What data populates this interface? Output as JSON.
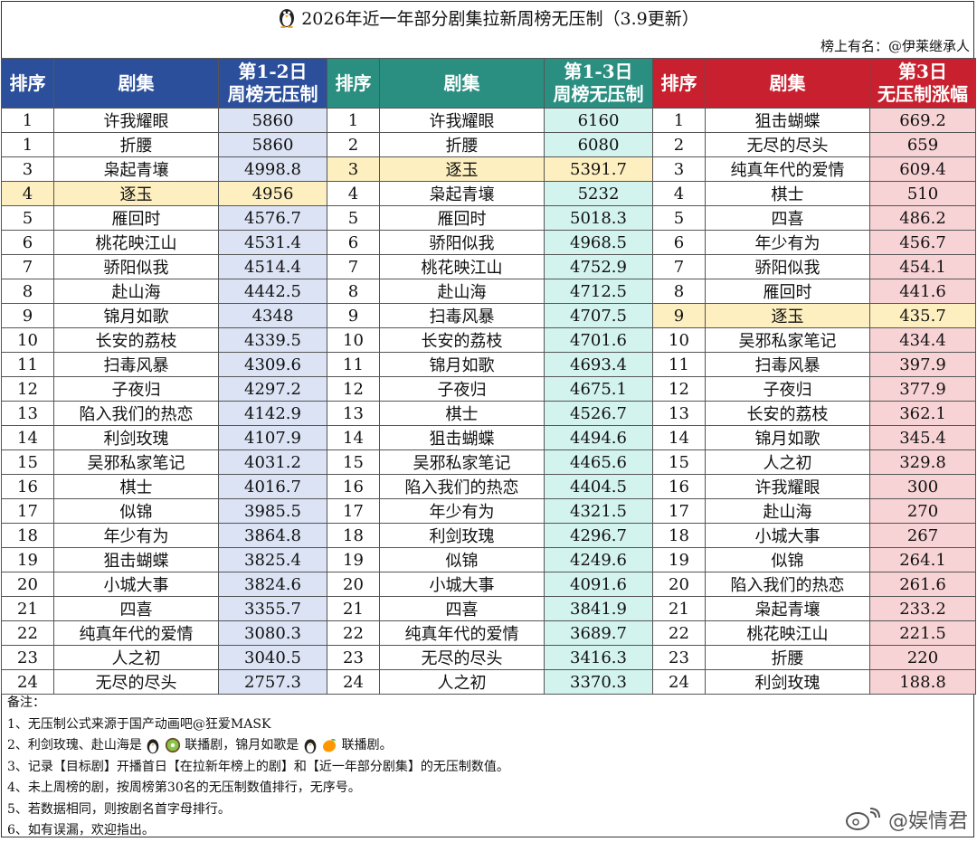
{
  "title": "2026年近一年部分剧集拉新周榜无压制（3.9更新）",
  "credit": "榜上有名：@伊莱继承人",
  "colors": {
    "blue_header": "#2c4f9c",
    "teal_header": "#2a8f80",
    "red_header": "#c8202e",
    "blue_cell": "#dbe3f4",
    "teal_cell": "#d3f3ef",
    "red_cell": "#f8d3d5",
    "highlight": "#fdefbf"
  },
  "sections": [
    {
      "headers": [
        "排序",
        "剧集",
        "第1-2日\n周榜无压制"
      ],
      "theme": "blue",
      "highlight_title": "逐玉",
      "rows": [
        {
          "rank": "1",
          "title": "许我耀眼",
          "value": "5860"
        },
        {
          "rank": "1",
          "title": "折腰",
          "value": "5860"
        },
        {
          "rank": "3",
          "title": "枭起青壤",
          "value": "4998.8"
        },
        {
          "rank": "4",
          "title": "逐玉",
          "value": "4956"
        },
        {
          "rank": "5",
          "title": "雁回时",
          "value": "4576.7"
        },
        {
          "rank": "6",
          "title": "桃花映江山",
          "value": "4531.4"
        },
        {
          "rank": "7",
          "title": "骄阳似我",
          "value": "4514.4"
        },
        {
          "rank": "8",
          "title": "赴山海",
          "value": "4442.5"
        },
        {
          "rank": "9",
          "title": "锦月如歌",
          "value": "4348"
        },
        {
          "rank": "10",
          "title": "长安的荔枝",
          "value": "4339.5"
        },
        {
          "rank": "11",
          "title": "扫毒风暴",
          "value": "4309.6"
        },
        {
          "rank": "12",
          "title": "子夜归",
          "value": "4297.2"
        },
        {
          "rank": "13",
          "title": "陷入我们的热恋",
          "value": "4142.9"
        },
        {
          "rank": "14",
          "title": "利剑玫瑰",
          "value": "4107.9"
        },
        {
          "rank": "15",
          "title": "吴邪私家笔记",
          "value": "4031.2"
        },
        {
          "rank": "16",
          "title": "棋士",
          "value": "4016.7"
        },
        {
          "rank": "17",
          "title": "似锦",
          "value": "3985.5"
        },
        {
          "rank": "18",
          "title": "年少有为",
          "value": "3864.8"
        },
        {
          "rank": "19",
          "title": "狙击蝴蝶",
          "value": "3825.4"
        },
        {
          "rank": "20",
          "title": "小城大事",
          "value": "3824.6"
        },
        {
          "rank": "21",
          "title": "四喜",
          "value": "3355.7"
        },
        {
          "rank": "22",
          "title": "纯真年代的爱情",
          "value": "3080.3"
        },
        {
          "rank": "23",
          "title": "人之初",
          "value": "3040.5"
        },
        {
          "rank": "24",
          "title": "无尽的尽头",
          "value": "2757.3"
        }
      ]
    },
    {
      "headers": [
        "排序",
        "剧集",
        "第1-3日\n周榜无压制"
      ],
      "theme": "teal",
      "highlight_title": "逐玉",
      "rows": [
        {
          "rank": "1",
          "title": "许我耀眼",
          "value": "6160"
        },
        {
          "rank": "2",
          "title": "折腰",
          "value": "6080"
        },
        {
          "rank": "3",
          "title": "逐玉",
          "value": "5391.7"
        },
        {
          "rank": "4",
          "title": "枭起青壤",
          "value": "5232"
        },
        {
          "rank": "5",
          "title": "雁回时",
          "value": "5018.3"
        },
        {
          "rank": "6",
          "title": "骄阳似我",
          "value": "4968.5"
        },
        {
          "rank": "7",
          "title": "桃花映江山",
          "value": "4752.9"
        },
        {
          "rank": "8",
          "title": "赴山海",
          "value": "4712.5"
        },
        {
          "rank": "9",
          "title": "扫毒风暴",
          "value": "4707.5"
        },
        {
          "rank": "10",
          "title": "长安的荔枝",
          "value": "4701.6"
        },
        {
          "rank": "11",
          "title": "锦月如歌",
          "value": "4693.4"
        },
        {
          "rank": "12",
          "title": "子夜归",
          "value": "4675.1"
        },
        {
          "rank": "13",
          "title": "棋士",
          "value": "4526.7"
        },
        {
          "rank": "14",
          "title": "狙击蝴蝶",
          "value": "4494.6"
        },
        {
          "rank": "15",
          "title": "吴邪私家笔记",
          "value": "4465.6"
        },
        {
          "rank": "16",
          "title": "陷入我们的热恋",
          "value": "4404.5"
        },
        {
          "rank": "17",
          "title": "年少有为",
          "value": "4321.5"
        },
        {
          "rank": "18",
          "title": "利剑玫瑰",
          "value": "4296.7"
        },
        {
          "rank": "19",
          "title": "似锦",
          "value": "4249.6"
        },
        {
          "rank": "20",
          "title": "小城大事",
          "value": "4091.6"
        },
        {
          "rank": "21",
          "title": "四喜",
          "value": "3841.9"
        },
        {
          "rank": "22",
          "title": "纯真年代的爱情",
          "value": "3689.7"
        },
        {
          "rank": "23",
          "title": "无尽的尽头",
          "value": "3416.3"
        },
        {
          "rank": "24",
          "title": "人之初",
          "value": "3370.3"
        }
      ]
    },
    {
      "headers": [
        "排序",
        "剧集",
        "第3日\n无压制涨幅"
      ],
      "theme": "red",
      "highlight_title": "逐玉",
      "rows": [
        {
          "rank": "1",
          "title": "狙击蝴蝶",
          "value": "669.2"
        },
        {
          "rank": "2",
          "title": "无尽的尽头",
          "value": "659"
        },
        {
          "rank": "3",
          "title": "纯真年代的爱情",
          "value": "609.4"
        },
        {
          "rank": "4",
          "title": "棋士",
          "value": "510"
        },
        {
          "rank": "5",
          "title": "四喜",
          "value": "486.2"
        },
        {
          "rank": "6",
          "title": "年少有为",
          "value": "456.7"
        },
        {
          "rank": "7",
          "title": "骄阳似我",
          "value": "454.1"
        },
        {
          "rank": "8",
          "title": "雁回时",
          "value": "441.6"
        },
        {
          "rank": "9",
          "title": "逐玉",
          "value": "435.7"
        },
        {
          "rank": "10",
          "title": "吴邪私家笔记",
          "value": "434.4"
        },
        {
          "rank": "11",
          "title": "扫毒风暴",
          "value": "397.9"
        },
        {
          "rank": "12",
          "title": "子夜归",
          "value": "377.9"
        },
        {
          "rank": "13",
          "title": "长安的荔枝",
          "value": "362.1"
        },
        {
          "rank": "14",
          "title": "锦月如歌",
          "value": "345.4"
        },
        {
          "rank": "15",
          "title": "人之初",
          "value": "329.8"
        },
        {
          "rank": "16",
          "title": "许我耀眼",
          "value": "300"
        },
        {
          "rank": "17",
          "title": "赴山海",
          "value": "270"
        },
        {
          "rank": "18",
          "title": "小城大事",
          "value": "267"
        },
        {
          "rank": "19",
          "title": "似锦",
          "value": "264.1"
        },
        {
          "rank": "20",
          "title": "陷入我们的热恋",
          "value": "261.6"
        },
        {
          "rank": "21",
          "title": "枭起青壤",
          "value": "233.2"
        },
        {
          "rank": "22",
          "title": "桃花映江山",
          "value": "221.5"
        },
        {
          "rank": "23",
          "title": "折腰",
          "value": "220"
        },
        {
          "rank": "24",
          "title": "利剑玫瑰",
          "value": "188.8"
        }
      ]
    }
  ],
  "notes": {
    "heading": "备注：",
    "line1": "1、无压制公式来源于国产动画吧@狂爱MASK",
    "line2_a": "2、利剑玫瑰、赴山海是",
    "line2_b": "联播剧，锦月如歌是",
    "line2_c": "联播剧。",
    "line3": "3、记录【目标剧】开播首日【在拉新年榜上的剧】和【近一年部分剧集】的无压制数值。",
    "line4": "4、未上周榜的剧，按周榜第30名的无压制数值排行，无序号。",
    "line5": "5、若数据相同，则按剧名首字母排行。",
    "line6": "6、如有误漏，欢迎指出。"
  },
  "icons": {
    "title_icon": "penguin-icon",
    "note_icons_1": [
      "penguin-icon",
      "kiwi-icon"
    ],
    "note_icons_2": [
      "penguin-icon",
      "mango-icon"
    ]
  },
  "watermark": "@娱情君"
}
